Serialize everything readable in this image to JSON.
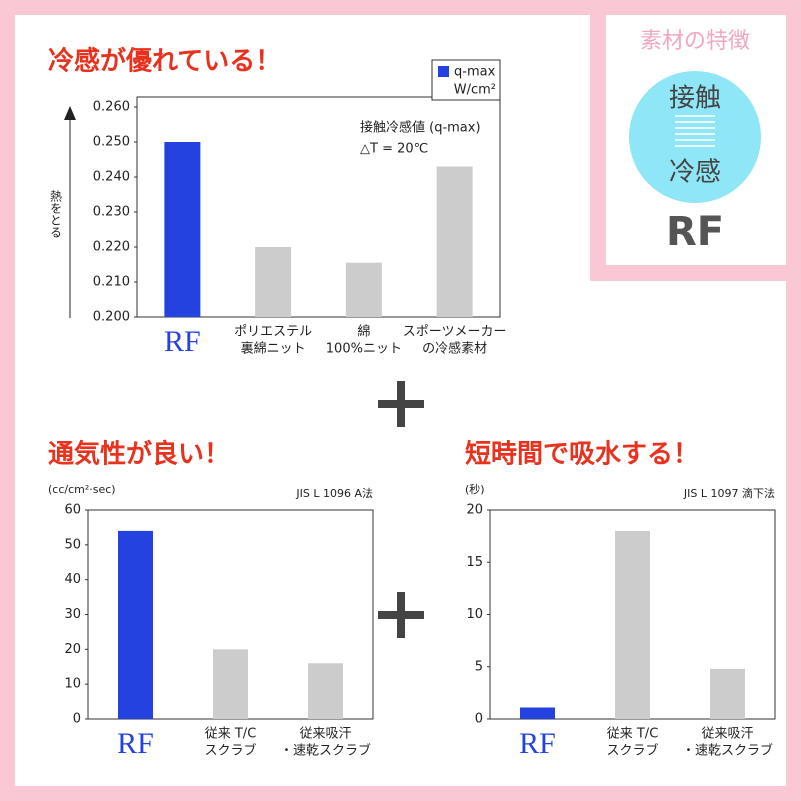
{
  "chart_data": [
    {
      "type": "bar",
      "title": "冷感が優れている！",
      "y_label": "熱をとる",
      "annotation": [
        "接触冷感値 (q-max)",
        "△T = 20℃"
      ],
      "legend": {
        "name": "q-max",
        "unit": "W/cm²",
        "color": "#2442e0"
      },
      "categories": [
        [
          "RF"
        ],
        [
          "ポリエステル",
          "裏綿ニット"
        ],
        [
          "綿",
          "100%ニット"
        ],
        [
          "スポーツメーカー",
          "の冷感素材"
        ]
      ],
      "values": [
        0.25,
        0.22,
        0.2155,
        0.243
      ],
      "colors": [
        "#2442e0",
        "#cccccc",
        "#cccccc",
        "#cccccc"
      ],
      "ylim": [
        0.2,
        0.26
      ],
      "yticks": [
        {
          "value": 0.2,
          "label": "0.200"
        },
        {
          "value": 0.21,
          "label": "0.210"
        },
        {
          "value": 0.22,
          "label": "0.220"
        },
        {
          "value": 0.23,
          "label": "0.230"
        },
        {
          "value": 0.24,
          "label": "0.240"
        },
        {
          "value": 0.25,
          "label": "0.250"
        },
        {
          "value": 0.26,
          "label": "0.260"
        }
      ]
    },
    {
      "type": "bar",
      "title": "通気性が良い！",
      "unit": "(cc/cm²·sec)",
      "note": "JIS L 1096  A法",
      "categories": [
        [
          "RF"
        ],
        [
          "従来 T/C",
          "スクラブ"
        ],
        [
          "従来吸汗",
          "・速乾スクラブ"
        ]
      ],
      "values": [
        54,
        20,
        16
      ],
      "colors": [
        "#2442e0",
        "#cccccc",
        "#cccccc"
      ],
      "ylim": [
        0,
        60
      ],
      "yticks": [
        0,
        10,
        20,
        30,
        40,
        50,
        60
      ]
    },
    {
      "type": "bar",
      "title": "短時間で吸水する！",
      "unit": "(秒)",
      "note": "JIS L 1097  滴下法",
      "categories": [
        [
          "RF"
        ],
        [
          "従来 T/C",
          "スクラブ"
        ],
        [
          "従来吸汗",
          "・速乾スクラブ"
        ]
      ],
      "values": [
        1.1,
        18,
        4.8
      ],
      "colors": [
        "#2442e0",
        "#cccccc",
        "#cccccc"
      ],
      "ylim": [
        0,
        20
      ],
      "yticks": [
        0,
        5,
        10,
        15,
        20
      ]
    }
  ],
  "badge": {
    "title": "素材の特徴",
    "line1": "接触",
    "line2": "冷感",
    "label": "RF"
  }
}
